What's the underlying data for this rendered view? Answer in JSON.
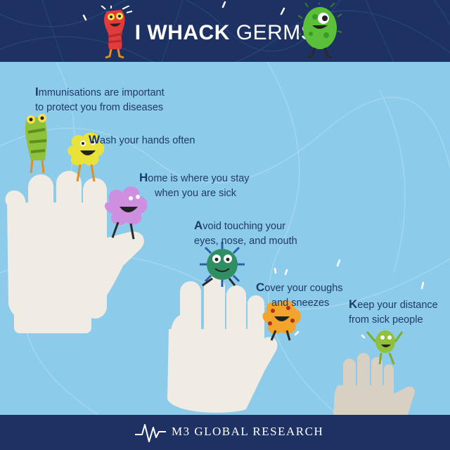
{
  "header": {
    "title_bold": "I WHACK",
    "title_regular": "GERMS"
  },
  "tips": [
    {
      "first_letter": "I",
      "line1_rest": "mmunisations are important",
      "line2": "to protect you from diseases"
    },
    {
      "first_letter": "W",
      "line1_rest": "ash your hands often",
      "line2": ""
    },
    {
      "first_letter": "H",
      "line1_rest": "ome is where you stay",
      "line2": "when you are sick"
    },
    {
      "first_letter": "A",
      "line1_rest": "void touching your",
      "line2": "eyes, nose, and mouth"
    },
    {
      "first_letter": "C",
      "line1_rest": "over your coughs",
      "line2": "and sneezes"
    },
    {
      "first_letter": "K",
      "line1_rest": "eep your distance",
      "line2": "from sick people"
    }
  ],
  "footer": {
    "brand": "M3 GLOBAL RESEARCH"
  },
  "colors": {
    "navy": "#1d3263",
    "sky": "#8ccbe9",
    "text": "#1f3a68",
    "hand": "#f0ebe3"
  },
  "icons": [
    "red-germ-icon",
    "green-germ-icon",
    "green-striped-germ-icon",
    "yellow-germ-icon",
    "pink-germ-icon",
    "blue-germ-icon",
    "orange-germ-icon",
    "small-green-germ-icon",
    "heartbeat-logo-icon"
  ]
}
